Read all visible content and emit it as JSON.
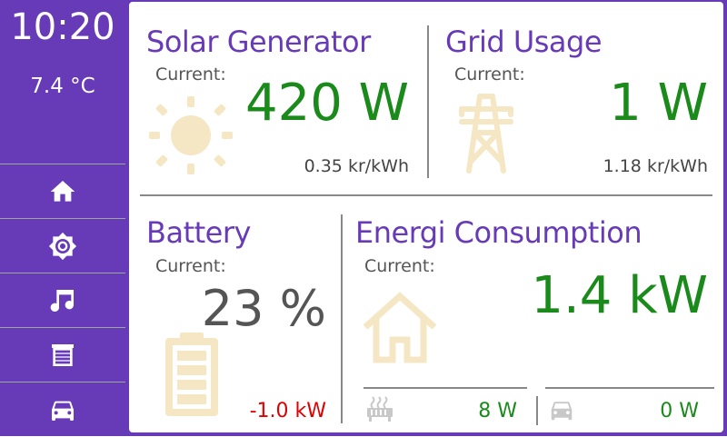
{
  "sidebar": {
    "time": "10:20",
    "temperature": "7.4 °C",
    "nav": [
      {
        "id": "home",
        "icon": "home-icon"
      },
      {
        "id": "lights",
        "icon": "brightness-icon"
      },
      {
        "id": "music",
        "icon": "music-note-icon"
      },
      {
        "id": "garage",
        "icon": "garage-door-icon"
      },
      {
        "id": "car",
        "icon": "car-icon"
      }
    ]
  },
  "solar": {
    "title": "Solar Generator",
    "current_label": "Current:",
    "value": "420 W",
    "price": "0.35 kr/kWh",
    "icon": "sun-icon"
  },
  "grid": {
    "title": "Grid Usage",
    "current_label": "Current:",
    "value": "1 W",
    "price": "1.18 kr/kWh",
    "icon": "power-tower-icon"
  },
  "battery": {
    "title": "Battery",
    "current_label": "Current:",
    "value": "23 %",
    "power": "-1.0 kW",
    "icon": "battery-icon"
  },
  "consumption": {
    "title": "Energi Consumption",
    "current_label": "Current:",
    "value": "1.4 kW",
    "icon": "house-icon",
    "heater_value": "8 W",
    "heater_icon": "heater-icon",
    "car_value": "0 W",
    "car_icon": "car-icon"
  },
  "colors": {
    "accent": "#673ab7",
    "value_green": "#1a8a1a",
    "value_red": "#e00000",
    "icon_cream": "#f5e6c4"
  }
}
